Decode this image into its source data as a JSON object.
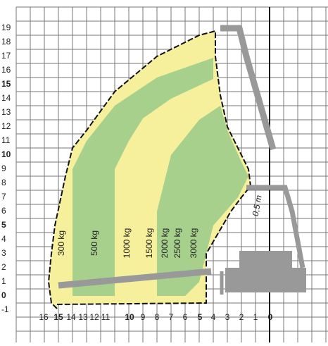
{
  "y_axis": {
    "labels": [
      "19",
      "18",
      "17",
      "16",
      "15",
      "14",
      "13",
      "12",
      "11",
      "10",
      "9",
      "8",
      "7",
      "6",
      "5",
      "4",
      "3",
      "2",
      "1",
      "0",
      "-1"
    ]
  },
  "x_axis": {
    "labels": [
      "16",
      "15",
      "14",
      "13",
      "12",
      "11",
      "10",
      "9",
      "8",
      "7",
      "6",
      "5",
      "4",
      "3",
      "2",
      "1",
      "0"
    ]
  },
  "load_labels": [
    "300 kg",
    "500 kg",
    "1000 kg",
    "1500 kg",
    "2000 kg",
    "2500 kg",
    "3000 kg"
  ],
  "annotation": "0,5 m"
}
